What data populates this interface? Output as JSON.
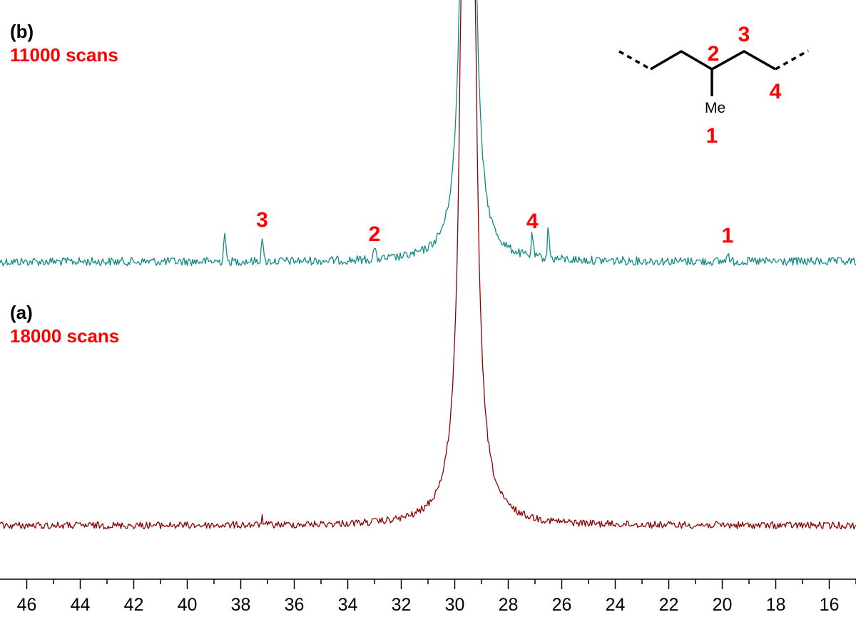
{
  "colors": {
    "spectrum_b": "#0f8a8a",
    "spectrum_a": "#8b0000",
    "annotation": "#ff0000",
    "text": "#000000"
  },
  "chart_data": {
    "type": "line",
    "xlim": [
      47,
      15
    ],
    "x_reversed": true,
    "x_ticks": [
      46,
      44,
      42,
      40,
      38,
      36,
      34,
      32,
      30,
      28,
      26,
      24,
      22,
      20,
      18,
      16
    ],
    "x_tick_labels": [
      "46",
      "44",
      "42",
      "40",
      "38",
      "36",
      "34",
      "32",
      "30",
      "28",
      "26",
      "24",
      "22",
      "20",
      "18",
      "16"
    ],
    "grid": false,
    "main_peak_ppm": 29.5,
    "series": [
      {
        "name": "(b)",
        "subtitle": "11000 scans",
        "color": "#0f8a8a",
        "peaks": [
          {
            "x": 38.6,
            "height": 0.55
          },
          {
            "x": 37.2,
            "height": 0.45
          },
          {
            "x": 33.0,
            "height": 0.22
          },
          {
            "x": 29.5,
            "height": 40
          },
          {
            "x": 27.1,
            "height": 0.4
          },
          {
            "x": 26.5,
            "height": 0.55
          },
          {
            "x": 19.8,
            "height": 0.18
          }
        ]
      },
      {
        "name": "(a)",
        "subtitle": "18000 scans",
        "color": "#8b0000",
        "peaks": [
          {
            "x": 29.5,
            "height": 60
          },
          {
            "x": 37.2,
            "height": 0.12
          }
        ]
      }
    ],
    "annotations": [
      {
        "label": "3",
        "x": 37.2
      },
      {
        "label": "2",
        "x": 33.0
      },
      {
        "label": "4",
        "x": 27.1
      },
      {
        "label": "1",
        "x": 19.8
      }
    ]
  },
  "structure": {
    "substituent": "Me",
    "position_labels": [
      "1",
      "2",
      "3",
      "4"
    ]
  }
}
